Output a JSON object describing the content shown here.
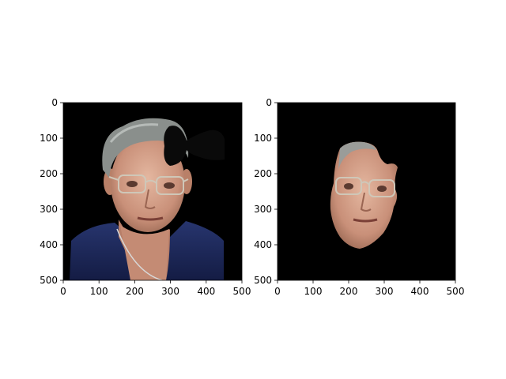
{
  "chart_data": [
    {
      "type": "image",
      "xlim": [
        0,
        500
      ],
      "ylim": [
        500,
        0
      ],
      "xticks": [
        0,
        100,
        200,
        300,
        400,
        500
      ],
      "yticks": [
        0,
        100,
        200,
        300,
        400,
        500
      ],
      "xtick_labels": [
        "0",
        "100",
        "200",
        "300",
        "400",
        "500"
      ],
      "ytick_labels": [
        "0",
        "100",
        "200",
        "300",
        "400",
        "500"
      ],
      "content": "photo-portrait-with-black-occlusion"
    },
    {
      "type": "image",
      "xlim": [
        0,
        500
      ],
      "ylim": [
        500,
        0
      ],
      "xticks": [
        0,
        100,
        200,
        300,
        400,
        500
      ],
      "yticks": [
        0,
        100,
        200,
        300,
        400,
        500
      ],
      "xtick_labels": [
        "0",
        "100",
        "200",
        "300",
        "400",
        "500"
      ],
      "ytick_labels": [
        "0",
        "100",
        "200",
        "300",
        "400",
        "500"
      ],
      "content": "segmented-face-on-black"
    }
  ],
  "colors": {
    "background": "#000000",
    "hair": "#8a8f8c",
    "skin": "#d9a78f",
    "shirt": "#1f2a5c"
  }
}
